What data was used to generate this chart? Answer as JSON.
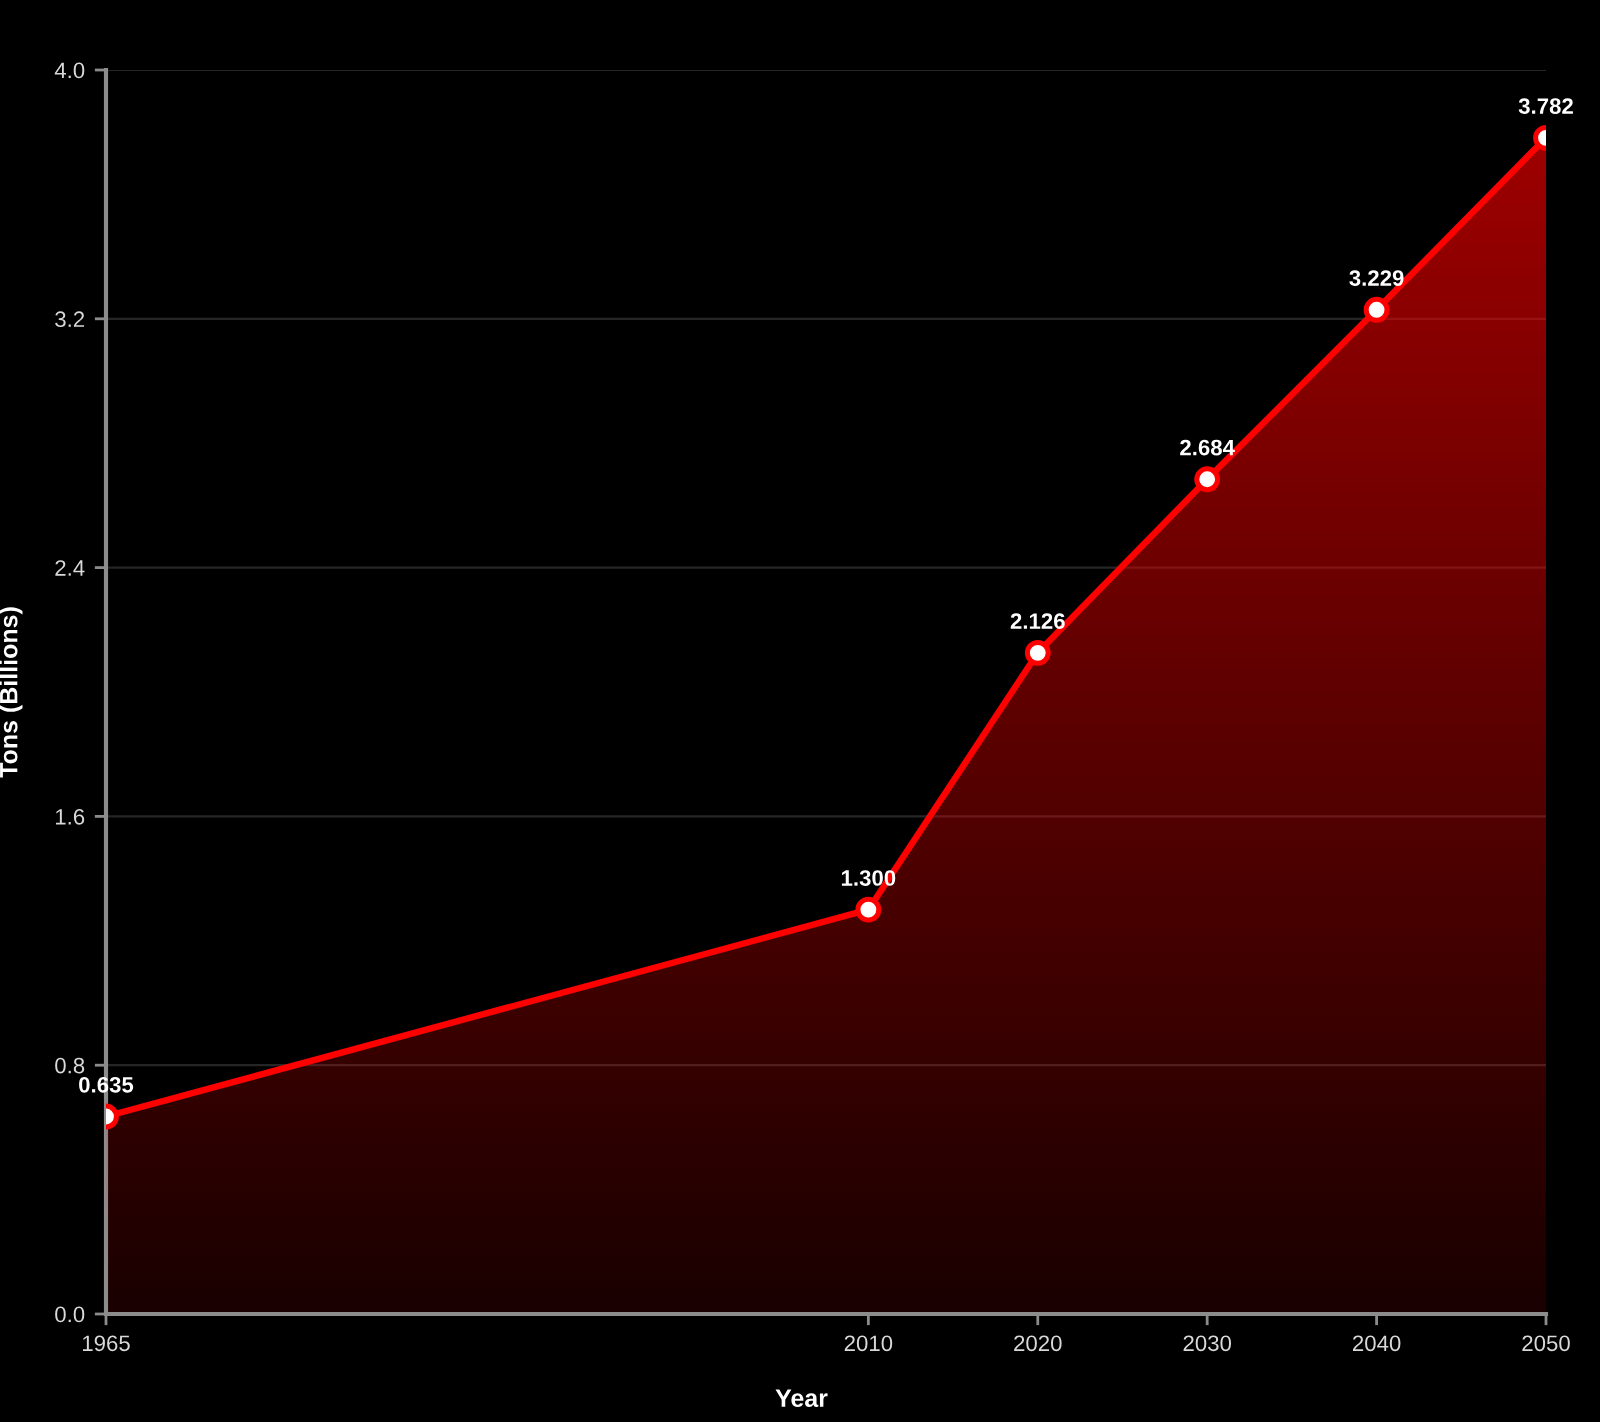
{
  "chart_data": {
    "type": "area",
    "xlabel": "Year",
    "ylabel": "Tons (Billions)",
    "x": [
      1965,
      2010,
      2020,
      2030,
      2040,
      2050
    ],
    "series": [
      {
        "color": "#ff0000",
        "values": [
          0.635,
          1.3,
          2.126,
          2.684,
          3.229,
          3.782
        ],
        "value_labels": [
          "0.635",
          "1.300",
          "2.126",
          "2.684",
          "3.229",
          "3.782"
        ]
      }
    ],
    "xlim": [
      1965,
      2050
    ],
    "xticks": [
      1965,
      2010,
      2020,
      2030,
      2040,
      2050
    ],
    "ylim": [
      0,
      4.0
    ],
    "yticks": [
      {
        "value": 0,
        "label": "0.0"
      },
      0.8,
      1.6,
      2.4,
      3.2,
      {
        "value": 4,
        "label": "4.0"
      }
    ],
    "grid": "y",
    "marker": "circle",
    "line_style": "solid"
  }
}
